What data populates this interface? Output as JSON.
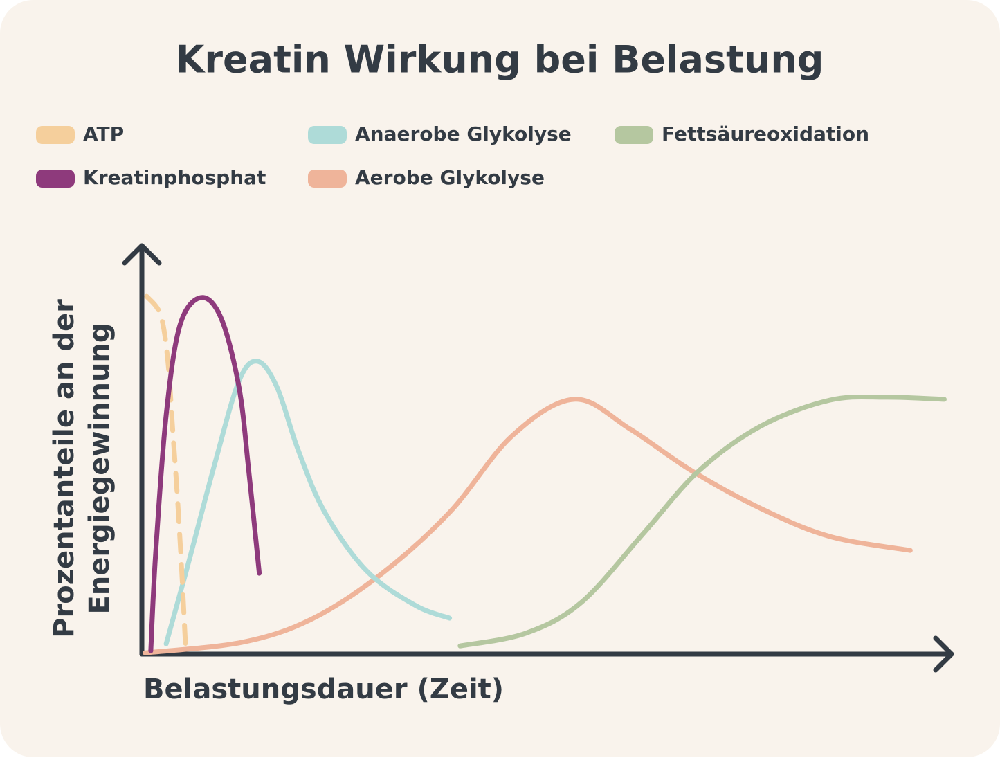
{
  "chart_data": {
    "type": "line",
    "title": "Kreatin Wirkung bei Belastung",
    "x_label": "Belastungsdauer (Zeit)",
    "y_label": [
      "Prozentanteile an der",
      "Energiegewinnung"
    ],
    "xlim": [
      0,
      100
    ],
    "ylim": [
      0,
      100
    ],
    "legend_rows": 2,
    "series": [
      {
        "name": "ATP",
        "color": "#f5cf9c",
        "dashed": true,
        "x": [
          0.6,
          2.3,
          3.2,
          3.8,
          4.4,
          4.9,
          5.4
        ],
        "values": [
          87.6,
          83.1,
          72.0,
          55.1,
          38.1,
          21.2,
          1.7
        ]
      },
      {
        "name": "Kreatinphosphat",
        "color": "#8e3a7c",
        "x": [
          1.1,
          1.7,
          3.0,
          4.7,
          7.3,
          9.8,
          12.0,
          13.2,
          14.5
        ],
        "values": [
          0.8,
          24.6,
          58.5,
          80.5,
          87.3,
          82.2,
          65.3,
          44.9,
          19.8
        ]
      },
      {
        "name": "Anaerobe Glykolyse",
        "color": "#aedbd8",
        "x": [
          3.0,
          5.6,
          9.0,
          12.0,
          14.3,
          16.7,
          19.3,
          22.6,
          27.8,
          33.8,
          38.0
        ],
        "values": [
          2.5,
          21.2,
          46.6,
          66.9,
          71.7,
          65.3,
          50.0,
          34.7,
          20.3,
          11.9,
          8.8
        ]
      },
      {
        "name": "Aerobe Glykolyse",
        "color": "#efb49a",
        "x": [
          0.4,
          12.4,
          20.9,
          29.5,
          38.0,
          45.7,
          53.4,
          60.3,
          67.9,
          76.5,
          85.0,
          94.9
        ],
        "values": [
          0.3,
          2.9,
          8.5,
          19.5,
          34.7,
          53.4,
          62.4,
          55.1,
          44.9,
          35.6,
          28.8,
          25.4
        ]
      },
      {
        "name": "Fettsäureoxidation",
        "color": "#b5c7a0",
        "x": [
          39.3,
          47.4,
          54.3,
          62.0,
          68.8,
          76.5,
          85.0,
          91.9,
          99.1
        ],
        "values": [
          2.0,
          5.1,
          12.7,
          29.7,
          44.9,
          55.9,
          62.2,
          62.9,
          62.4
        ]
      }
    ]
  }
}
